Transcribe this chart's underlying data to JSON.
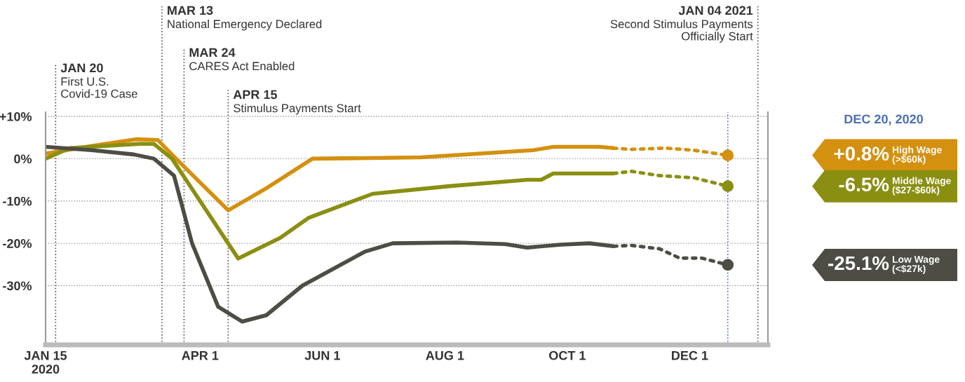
{
  "chart_data": {
    "type": "line",
    "xlim": [
      "2020-01-15",
      "2021-01-09"
    ],
    "ylim": [
      -44,
      11
    ],
    "xticks": [
      {
        "value": "2020-01-15",
        "label": "JAN 15\n2020"
      },
      {
        "value": "2020-04-01",
        "label": "APR 1"
      },
      {
        "value": "2020-06-01",
        "label": "JUN 1"
      },
      {
        "value": "2020-08-01",
        "label": "AUG 1"
      },
      {
        "value": "2020-10-01",
        "label": "OCT 1"
      },
      {
        "value": "2020-12-01",
        "label": "DEC 1"
      }
    ],
    "yticks": [
      {
        "value": 10,
        "label": "+10%"
      },
      {
        "value": 0,
        "label": "0%"
      },
      {
        "value": -10,
        "label": "-10%"
      },
      {
        "value": -20,
        "label": "-20%"
      },
      {
        "value": -30,
        "label": "-30%"
      }
    ],
    "grid": "y",
    "series": [
      {
        "name": "High Wage\n(>$60k)",
        "color": "#d4900f",
        "line_style": "solid",
        "x": [
          "2020-01-15",
          "2020-02-07",
          "2020-02-29",
          "2020-03-11",
          "2020-03-20",
          "2020-04-15",
          "2020-05-04",
          "2020-05-27",
          "2020-07-20",
          "2020-09-14",
          "2020-09-24",
          "2020-10-17",
          "2020-10-24"
        ],
        "values": [
          1.2,
          3,
          4.6,
          4.4,
          0,
          -12.2,
          -7,
          0,
          0.3,
          2,
          2.8,
          2.8,
          2.5
        ]
      },
      {
        "color": "#d4900f",
        "line_style": "dotted",
        "x": [
          "2020-10-24",
          "2020-11-02",
          "2020-11-19",
          "2020-12-03",
          "2020-12-20"
        ],
        "values": [
          2.5,
          2.2,
          2.5,
          2,
          0.8
        ]
      },
      {
        "name": "Middle Wage\n($27-$60k)",
        "color": "#8a8f12",
        "line_style": "solid",
        "x": [
          "2020-01-15",
          "2020-01-27",
          "2020-03-02",
          "2020-03-09",
          "2020-03-18",
          "2020-04-20",
          "2020-05-11",
          "2020-05-25",
          "2020-06-26",
          "2020-08-03",
          "2020-09-11",
          "2020-09-18",
          "2020-09-24",
          "2020-10-24"
        ],
        "values": [
          0,
          2.5,
          3.5,
          3.5,
          0,
          -23.6,
          -18.7,
          -14,
          -8.3,
          -6.5,
          -5,
          -5,
          -3.5,
          -3.5
        ]
      },
      {
        "color": "#8a8f12",
        "line_style": "dotted",
        "x": [
          "2020-10-24",
          "2020-11-02",
          "2020-11-16",
          "2020-12-03",
          "2020-12-20"
        ],
        "values": [
          -3.5,
          -3,
          -4,
          -4.5,
          -6.5
        ]
      },
      {
        "name": "Low Wage\n(<$27k)",
        "color": "#4d4d45",
        "line_style": "solid",
        "x": [
          "2020-01-15",
          "2020-02-07",
          "2020-02-28",
          "2020-03-09",
          "2020-03-19",
          "2020-03-28",
          "2020-04-10",
          "2020-04-22",
          "2020-05-04",
          "2020-05-22",
          "2020-06-22",
          "2020-07-06",
          "2020-08-07",
          "2020-08-31",
          "2020-09-11",
          "2020-09-28",
          "2020-10-12",
          "2020-10-24"
        ],
        "values": [
          2.8,
          2,
          1,
          0,
          -4,
          -20,
          -35,
          -38.5,
          -37,
          -30,
          -22,
          -20,
          -19.8,
          -20.2,
          -21,
          -20.3,
          -20,
          -20.7
        ]
      },
      {
        "color": "#4d4d45",
        "line_style": "dotted",
        "x": [
          "2020-10-24",
          "2020-11-02",
          "2020-11-16",
          "2020-11-26",
          "2020-12-07",
          "2020-12-20"
        ],
        "values": [
          -20.7,
          -20.5,
          -21.3,
          -23.5,
          -23.5,
          -25.1
        ]
      },
      {
        "type": "scatter",
        "marker": "circle",
        "color": "#d4900f",
        "x": [
          "2020-12-20"
        ],
        "values": [
          0.8
        ]
      },
      {
        "type": "scatter",
        "marker": "circle",
        "color": "#8a8f12",
        "x": [
          "2020-12-20"
        ],
        "values": [
          -6.5
        ]
      },
      {
        "type": "scatter",
        "marker": "circle",
        "color": "#4d4d45",
        "x": [
          "2020-12-20"
        ],
        "values": [
          -25.1
        ]
      }
    ],
    "annotations": [
      "+0.8%",
      "-6.5%",
      "-25.1%"
    ],
    "ref_lines": [
      {
        "axis": "x",
        "value": "2020-01-20",
        "label": "JAN 20\nFirst U.S.\nCovid-19 Case",
        "color": "#555555",
        "line_style": "dotted"
      },
      {
        "axis": "x",
        "value": "2020-03-13",
        "label": "MAR 13\nNational Emergency Declared",
        "color": "#555555",
        "line_style": "dotted"
      },
      {
        "axis": "x",
        "value": "2020-03-24",
        "label": "MAR 24\nCARES Act Enabled",
        "color": "#555555",
        "line_style": "dotted"
      },
      {
        "axis": "x",
        "value": "2020-04-15",
        "label": "APR 15\nStimulus Payments Start",
        "color": "#555555",
        "line_style": "dotted"
      },
      {
        "axis": "x",
        "value": "2021-01-04",
        "label": "JAN 04 2021\nSecond Stimulus Payments\nOfficially Start",
        "color": "#555555",
        "line_style": "dotted"
      },
      {
        "axis": "x",
        "value": "2020-12-20",
        "label": "DEC 20, 2020",
        "color": "#4a6fb5",
        "line_style": "dotted"
      }
    ]
  }
}
